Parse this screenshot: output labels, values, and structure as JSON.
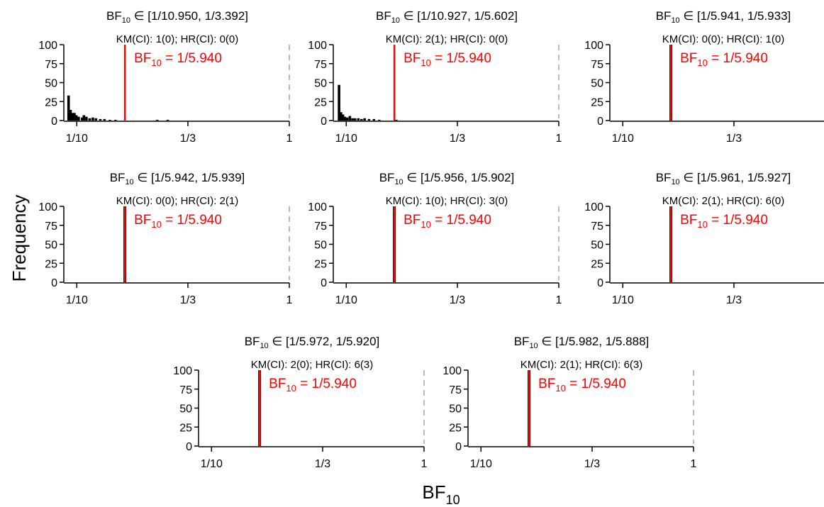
{
  "figure": {
    "ylabel": "Frequency",
    "xlabel_main": "BF",
    "xlabel_sub": "10"
  },
  "chart_data": [
    {
      "type": "bar",
      "title": "BF10 ∈ [1/10.950, 1/3.392]",
      "interval": [
        "1/10.950",
        "1/3.392"
      ],
      "km_ci": "KM(CI): 1(0);",
      "hr_ci": "HR(CI): 0(0)",
      "reference_label": "1/5.940",
      "reference_value": 0.1684,
      "x_axis": {
        "scale": "log",
        "range": [
          0.091,
          1.0
        ],
        "ticks": [
          0.1,
          0.3333,
          1.0
        ],
        "tick_labels": [
          "1/10",
          "1/3",
          "1"
        ]
      },
      "ylim": [
        0,
        100
      ],
      "yticks": [
        0,
        25,
        50,
        75,
        100
      ],
      "bins": [
        {
          "x": 0.0915,
          "y": 33
        },
        {
          "x": 0.0935,
          "y": 14
        },
        {
          "x": 0.0955,
          "y": 10
        },
        {
          "x": 0.0975,
          "y": 10
        },
        {
          "x": 0.0995,
          "y": 7
        },
        {
          "x": 0.102,
          "y": 5
        },
        {
          "x": 0.106,
          "y": 4
        },
        {
          "x": 0.108,
          "y": 7
        },
        {
          "x": 0.111,
          "y": 5
        },
        {
          "x": 0.115,
          "y": 3
        },
        {
          "x": 0.119,
          "y": 4
        },
        {
          "x": 0.123,
          "y": 3
        },
        {
          "x": 0.129,
          "y": 2
        },
        {
          "x": 0.135,
          "y": 2
        },
        {
          "x": 0.143,
          "y": 1
        },
        {
          "x": 0.152,
          "y": 1
        },
        {
          "x": 0.239,
          "y": 1
        },
        {
          "x": 0.268,
          "y": 1
        }
      ],
      "grid": false
    },
    {
      "type": "bar",
      "title": "BF10 ∈ [1/10.927, 1/5.602]",
      "interval": [
        "1/10.927",
        "1/5.602"
      ],
      "km_ci": "KM(CI): 2(1);",
      "hr_ci": "HR(CI): 0(0)",
      "reference_label": "1/5.940",
      "reference_value": 0.1684,
      "x_axis": {
        "scale": "log",
        "range": [
          0.091,
          1.0
        ],
        "ticks": [
          0.1,
          0.3333,
          1.0
        ],
        "tick_labels": [
          "1/10",
          "1/3",
          "1"
        ]
      },
      "ylim": [
        0,
        100
      ],
      "yticks": [
        0,
        25,
        50,
        75,
        100
      ],
      "bins": [
        {
          "x": 0.0925,
          "y": 47
        },
        {
          "x": 0.0945,
          "y": 11
        },
        {
          "x": 0.0965,
          "y": 8
        },
        {
          "x": 0.0985,
          "y": 5
        },
        {
          "x": 0.101,
          "y": 4
        },
        {
          "x": 0.104,
          "y": 6
        },
        {
          "x": 0.107,
          "y": 3
        },
        {
          "x": 0.11,
          "y": 3
        },
        {
          "x": 0.114,
          "y": 3
        },
        {
          "x": 0.118,
          "y": 2
        },
        {
          "x": 0.122,
          "y": 3
        },
        {
          "x": 0.128,
          "y": 2
        },
        {
          "x": 0.135,
          "y": 2
        },
        {
          "x": 0.143,
          "y": 1
        },
        {
          "x": 0.172,
          "y": 1
        }
      ],
      "grid": false
    },
    {
      "type": "bar",
      "title": "BF10 ∈ [1/5.941, 1/5.933]",
      "interval": [
        "1/5.941",
        "1/5.933"
      ],
      "km_ci": "KM(CI): 0(0);",
      "hr_ci": "HR(CI): 1(0)",
      "reference_label": "1/5.940",
      "reference_value": 0.1684,
      "x_axis": {
        "scale": "log",
        "range": [
          0.091,
          1.0
        ],
        "ticks": [
          0.1,
          0.3333
        ],
        "tick_labels": [
          "1/10",
          "1/3"
        ]
      },
      "ylim": [
        0,
        100
      ],
      "yticks": [
        0,
        25,
        50,
        75,
        100
      ],
      "bins": [
        {
          "x": 0.1684,
          "y": 100
        }
      ],
      "grid": false
    },
    {
      "type": "bar",
      "title": "BF10 ∈ [1/5.942, 1/5.939]",
      "interval": [
        "1/5.942",
        "1/5.939"
      ],
      "km_ci": "KM(CI): 0(0);",
      "hr_ci": "HR(CI): 2(1)",
      "reference_label": "1/5.940",
      "reference_value": 0.1684,
      "x_axis": {
        "scale": "log",
        "range": [
          0.091,
          1.0
        ],
        "ticks": [
          0.1,
          0.3333,
          1.0
        ],
        "tick_labels": [
          "1/10",
          "1/3",
          "1"
        ]
      },
      "ylim": [
        0,
        100
      ],
      "yticks": [
        0,
        25,
        50,
        75,
        100
      ],
      "bins": [
        {
          "x": 0.1684,
          "y": 100
        }
      ],
      "grid": false
    },
    {
      "type": "bar",
      "title": "BF10 ∈ [1/5.956, 1/5.902]",
      "interval": [
        "1/5.956",
        "1/5.902"
      ],
      "km_ci": "KM(CI): 1(0);",
      "hr_ci": "HR(CI): 3(0)",
      "reference_label": "1/5.940",
      "reference_value": 0.1684,
      "x_axis": {
        "scale": "log",
        "range": [
          0.091,
          1.0
        ],
        "ticks": [
          0.1,
          0.3333,
          1.0
        ],
        "tick_labels": [
          "1/10",
          "1/3",
          "1"
        ]
      },
      "ylim": [
        0,
        100
      ],
      "yticks": [
        0,
        25,
        50,
        75,
        100
      ],
      "bins": [
        {
          "x": 0.1684,
          "y": 100
        }
      ],
      "grid": false
    },
    {
      "type": "bar",
      "title": "BF10 ∈ [1/5.961, 1/5.927]",
      "interval": [
        "1/5.961",
        "1/5.927"
      ],
      "km_ci": "KM(CI): 2(1);",
      "hr_ci": "HR(CI): 6(0)",
      "reference_label": "1/5.940",
      "reference_value": 0.1684,
      "x_axis": {
        "scale": "log",
        "range": [
          0.091,
          1.0
        ],
        "ticks": [
          0.1,
          0.3333
        ],
        "tick_labels": [
          "1/10",
          "1/3"
        ]
      },
      "ylim": [
        0,
        100
      ],
      "yticks": [
        0,
        25,
        50,
        75,
        100
      ],
      "bins": [
        {
          "x": 0.1684,
          "y": 100
        }
      ],
      "grid": false
    },
    {
      "type": "bar",
      "title": "BF10 ∈ [1/5.972, 1/5.920]",
      "interval": [
        "1/5.972",
        "1/5.920"
      ],
      "km_ci": "KM(CI): 2(0);",
      "hr_ci": "HR(CI): 6(3)",
      "reference_label": "1/5.940",
      "reference_value": 0.1684,
      "x_axis": {
        "scale": "log",
        "range": [
          0.091,
          1.0
        ],
        "ticks": [
          0.1,
          0.3333,
          1.0
        ],
        "tick_labels": [
          "1/10",
          "1/3",
          "1"
        ]
      },
      "ylim": [
        0,
        100
      ],
      "yticks": [
        0,
        25,
        50,
        75,
        100
      ],
      "bins": [
        {
          "x": 0.1684,
          "y": 100
        }
      ],
      "grid": false
    },
    {
      "type": "bar",
      "title": "BF10 ∈ [1/5.982, 1/5.888]",
      "interval": [
        "1/5.982",
        "1/5.888"
      ],
      "km_ci": "KM(CI): 2(1);",
      "hr_ci": "HR(CI): 6(3)",
      "reference_label": "1/5.940",
      "reference_value": 0.1684,
      "x_axis": {
        "scale": "log",
        "range": [
          0.091,
          1.0
        ],
        "ticks": [
          0.1,
          0.3333,
          1.0
        ],
        "tick_labels": [
          "1/10",
          "1/3",
          "1"
        ]
      },
      "ylim": [
        0,
        100
      ],
      "yticks": [
        0,
        25,
        50,
        75,
        100
      ],
      "bins": [
        {
          "x": 0.1684,
          "y": 100
        }
      ],
      "grid": false
    }
  ],
  "colors": {
    "reference_line": "#ff0000",
    "bars": "#000000",
    "axis": "#000000",
    "upper_bound_line": "#bbbbbb"
  }
}
